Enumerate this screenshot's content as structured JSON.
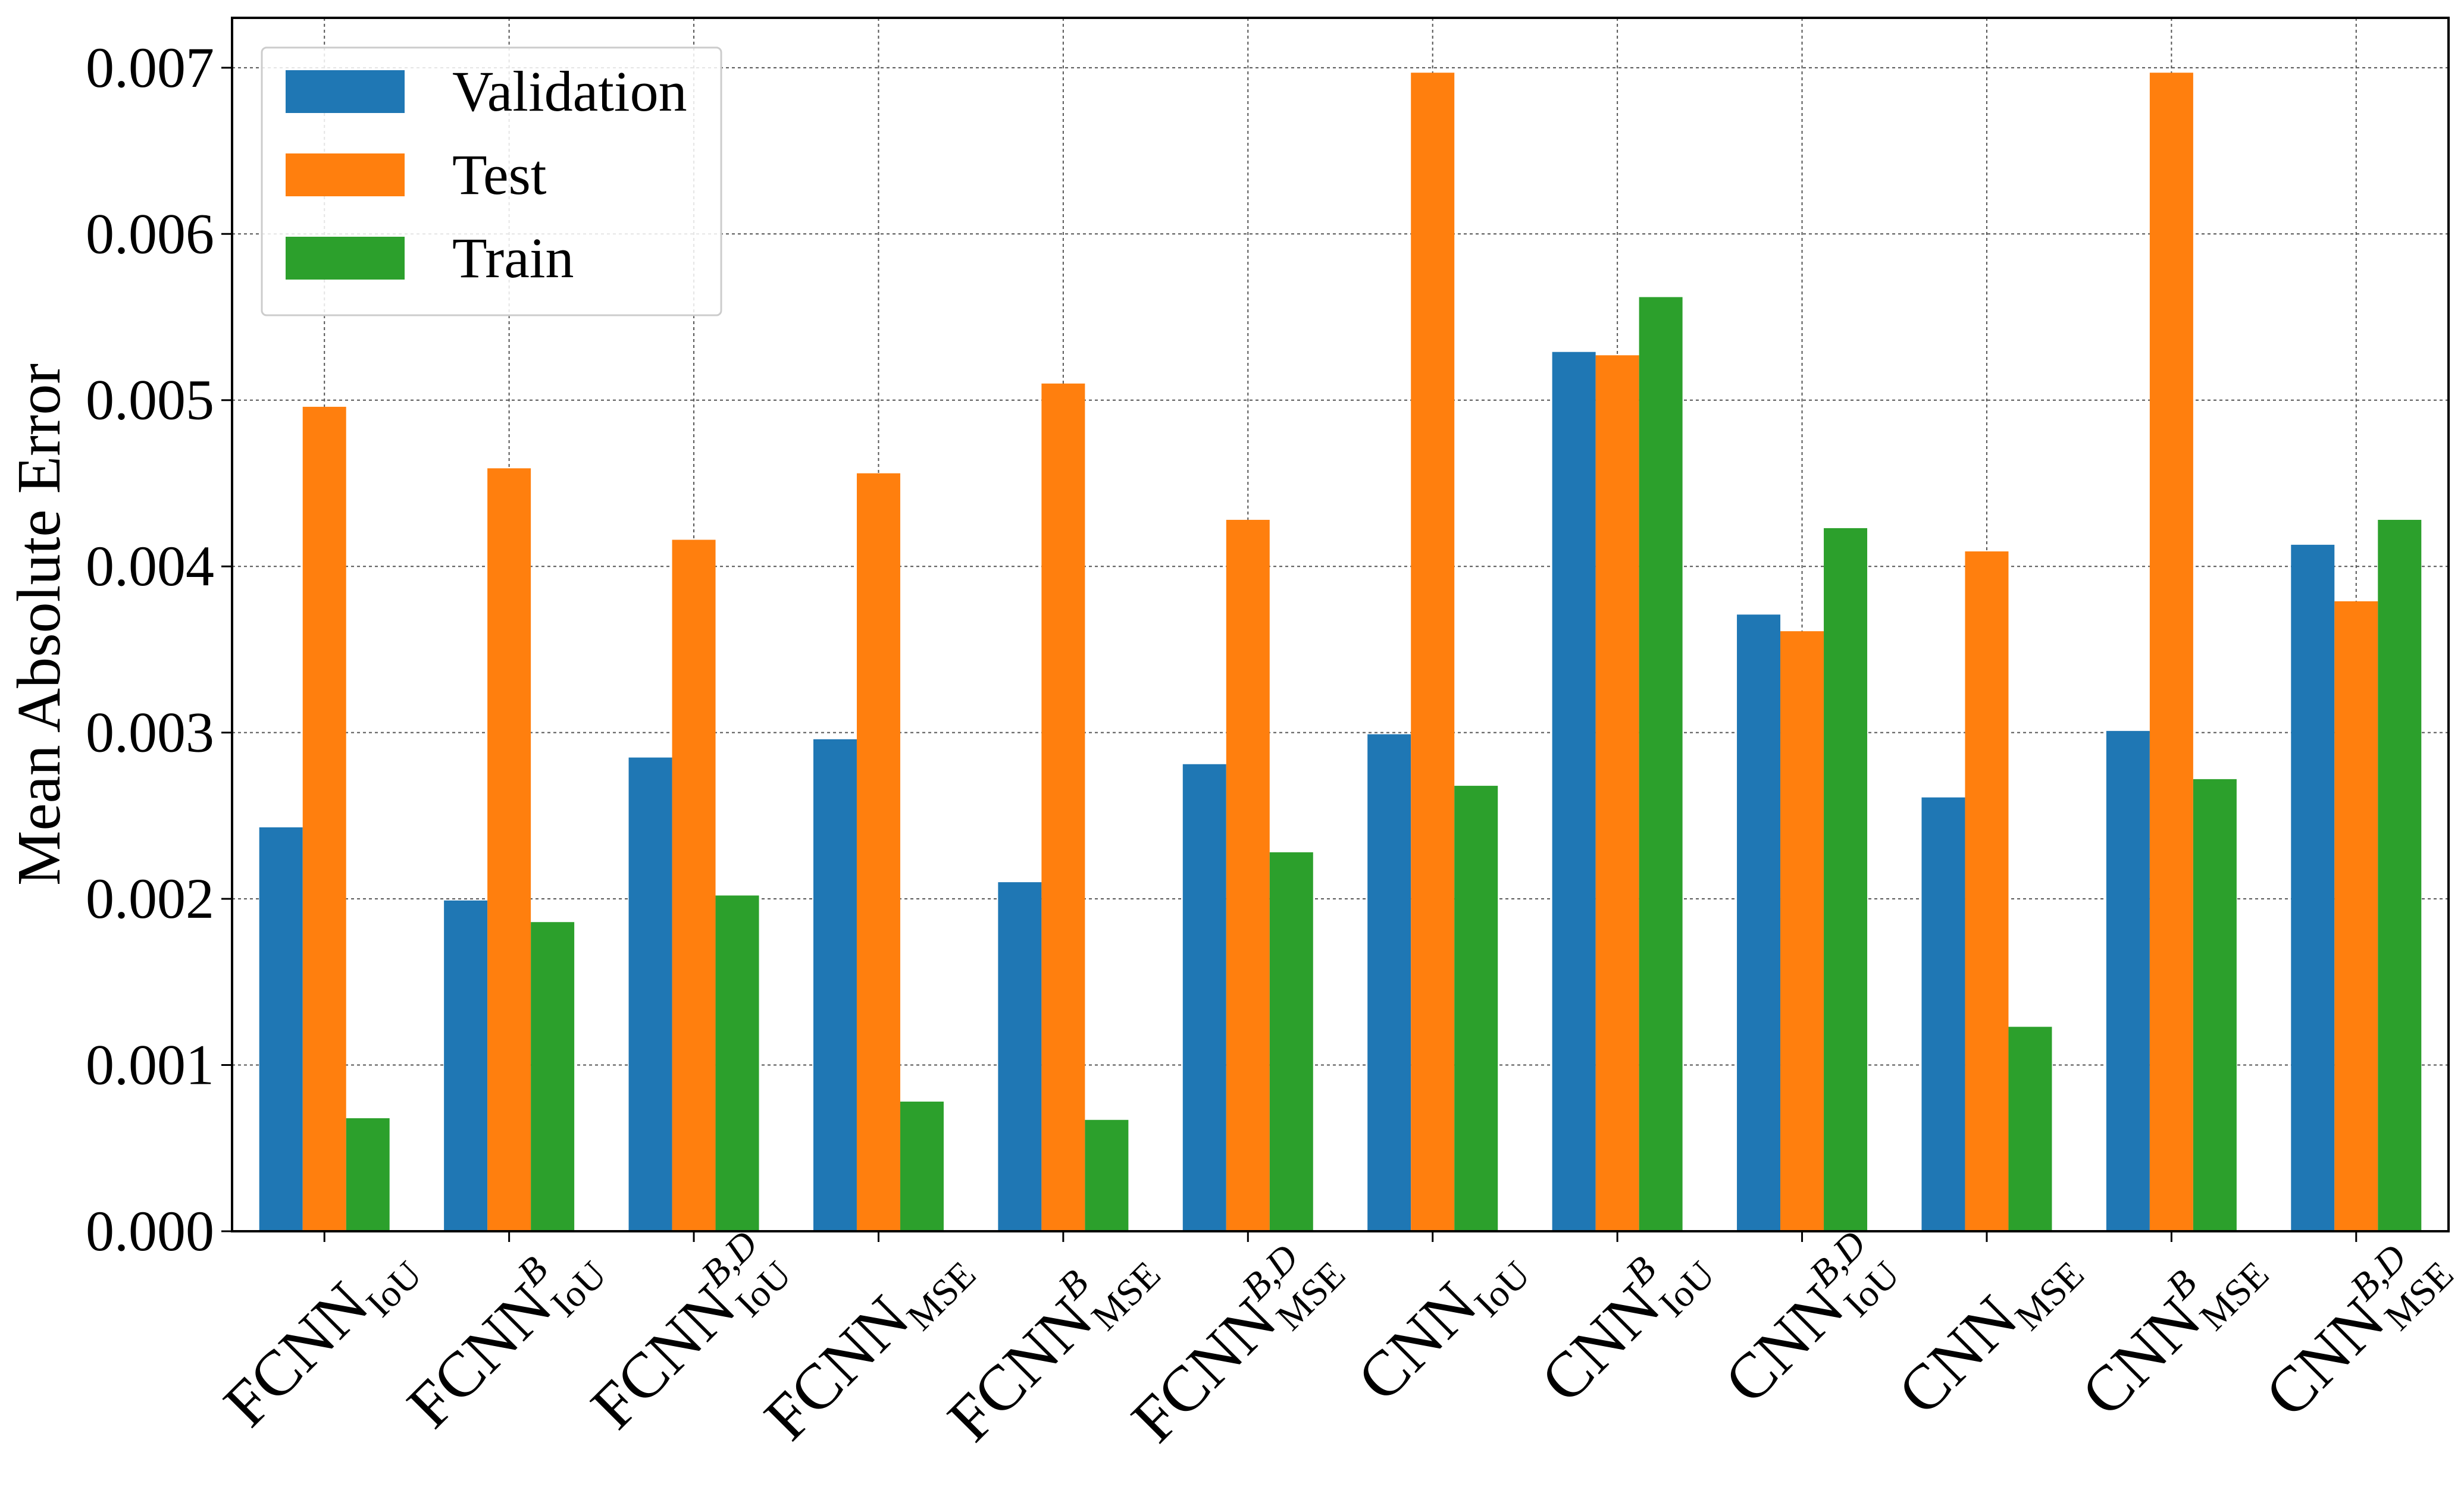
{
  "chart_data": {
    "type": "bar",
    "title": "",
    "xlabel": "",
    "ylabel": "Mean Absolute Error",
    "ylim": [
      0,
      0.0073
    ],
    "yticks": [
      "0.000",
      "0.001",
      "0.002",
      "0.003",
      "0.004",
      "0.005",
      "0.006",
      "0.007"
    ],
    "ytick_values": [
      0,
      0.001,
      0.002,
      0.003,
      0.004,
      0.005,
      0.006,
      0.007
    ],
    "grid": true,
    "legend_position": "top-left",
    "categories": [
      {
        "base": "FCNN",
        "sup": "",
        "sub": "IoU"
      },
      {
        "base": "FCNN",
        "sup": "B",
        "sub": "IoU"
      },
      {
        "base": "FCNN",
        "sup": "B,D",
        "sub": "IoU"
      },
      {
        "base": "FCNN",
        "sup": "",
        "sub": "MSE"
      },
      {
        "base": "FCNN",
        "sup": "B",
        "sub": "MSE"
      },
      {
        "base": "FCNN",
        "sup": "B,D",
        "sub": "MSE"
      },
      {
        "base": "CNN",
        "sup": "",
        "sub": "IoU"
      },
      {
        "base": "CNN",
        "sup": "B",
        "sub": "IoU"
      },
      {
        "base": "CNN",
        "sup": "B,D",
        "sub": "IoU"
      },
      {
        "base": "CNN",
        "sup": "",
        "sub": "MSE"
      },
      {
        "base": "CNN",
        "sup": "B",
        "sub": "MSE"
      },
      {
        "base": "CNN",
        "sup": "B,D",
        "sub": "MSE"
      }
    ],
    "series": [
      {
        "name": "Validation",
        "color": "#1f77b4",
        "values": [
          0.00243,
          0.00199,
          0.00285,
          0.00296,
          0.0021,
          0.00281,
          0.00299,
          0.00529,
          0.00371,
          0.00261,
          0.00301,
          0.00413
        ]
      },
      {
        "name": "Test",
        "color": "#ff7f0e",
        "values": [
          0.00496,
          0.00459,
          0.00416,
          0.00456,
          0.0051,
          0.00428,
          0.00697,
          0.00527,
          0.00361,
          0.00409,
          0.00697,
          0.00379
        ]
      },
      {
        "name": "Train",
        "color": "#2ca02c",
        "values": [
          0.00068,
          0.00186,
          0.00202,
          0.00078,
          0.00067,
          0.00228,
          0.00268,
          0.00562,
          0.00423,
          0.00123,
          0.00272,
          0.00428
        ]
      }
    ]
  }
}
